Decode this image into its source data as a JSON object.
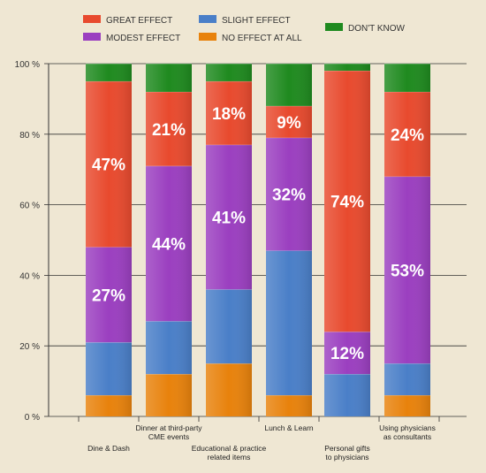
{
  "chart_data": {
    "type": "bar",
    "stacked": true,
    "categories": [
      "Dine & Dash",
      "Dinner at third-party CME events",
      "Educational & practice related items",
      "Lunch & Learn",
      "Personal gifts to physicians",
      "Using physicians as consultants"
    ],
    "category_lines": [
      [
        "Dine & Dash"
      ],
      [
        "Dinner at third-party",
        "CME events"
      ],
      [
        "Educational & practice",
        "related items"
      ],
      [
        "Lunch & Learn"
      ],
      [
        "Personal gifts",
        "to physicians"
      ],
      [
        "Using physicians",
        "as consultants"
      ]
    ],
    "series": [
      {
        "name": "NO EFFECT AT ALL",
        "color": "#e8820c",
        "values": [
          6,
          12,
          15,
          6,
          0,
          6
        ]
      },
      {
        "name": "SLIGHT EFFECT",
        "color": "#4a7fc8",
        "values": [
          15,
          15,
          21,
          41,
          12,
          9
        ]
      },
      {
        "name": "MODEST EFFECT",
        "color": "#9b3fc0",
        "values": [
          27,
          44,
          41,
          32,
          12,
          53
        ]
      },
      {
        "name": "GREAT EFFECT",
        "color": "#e84a2e",
        "values": [
          47,
          21,
          18,
          9,
          74,
          24
        ]
      },
      {
        "name": "DON'T KNOW",
        "color": "#1f8a1f",
        "values": [
          5,
          8,
          5,
          12,
          2,
          8
        ]
      }
    ],
    "data_labels": {
      "MODEST EFFECT": [
        "27%",
        "44%",
        "41%",
        "32%",
        "12%",
        "53%"
      ],
      "GREAT EFFECT": [
        "47%",
        "21%",
        "18%",
        "9%",
        "74%",
        "24%"
      ]
    },
    "y_ticks": [
      "0 %",
      "20 %",
      "40 %",
      "60 %",
      "80 %",
      "100 %"
    ],
    "ylim": [
      0,
      100
    ],
    "grid": true,
    "legend_position": "top"
  }
}
